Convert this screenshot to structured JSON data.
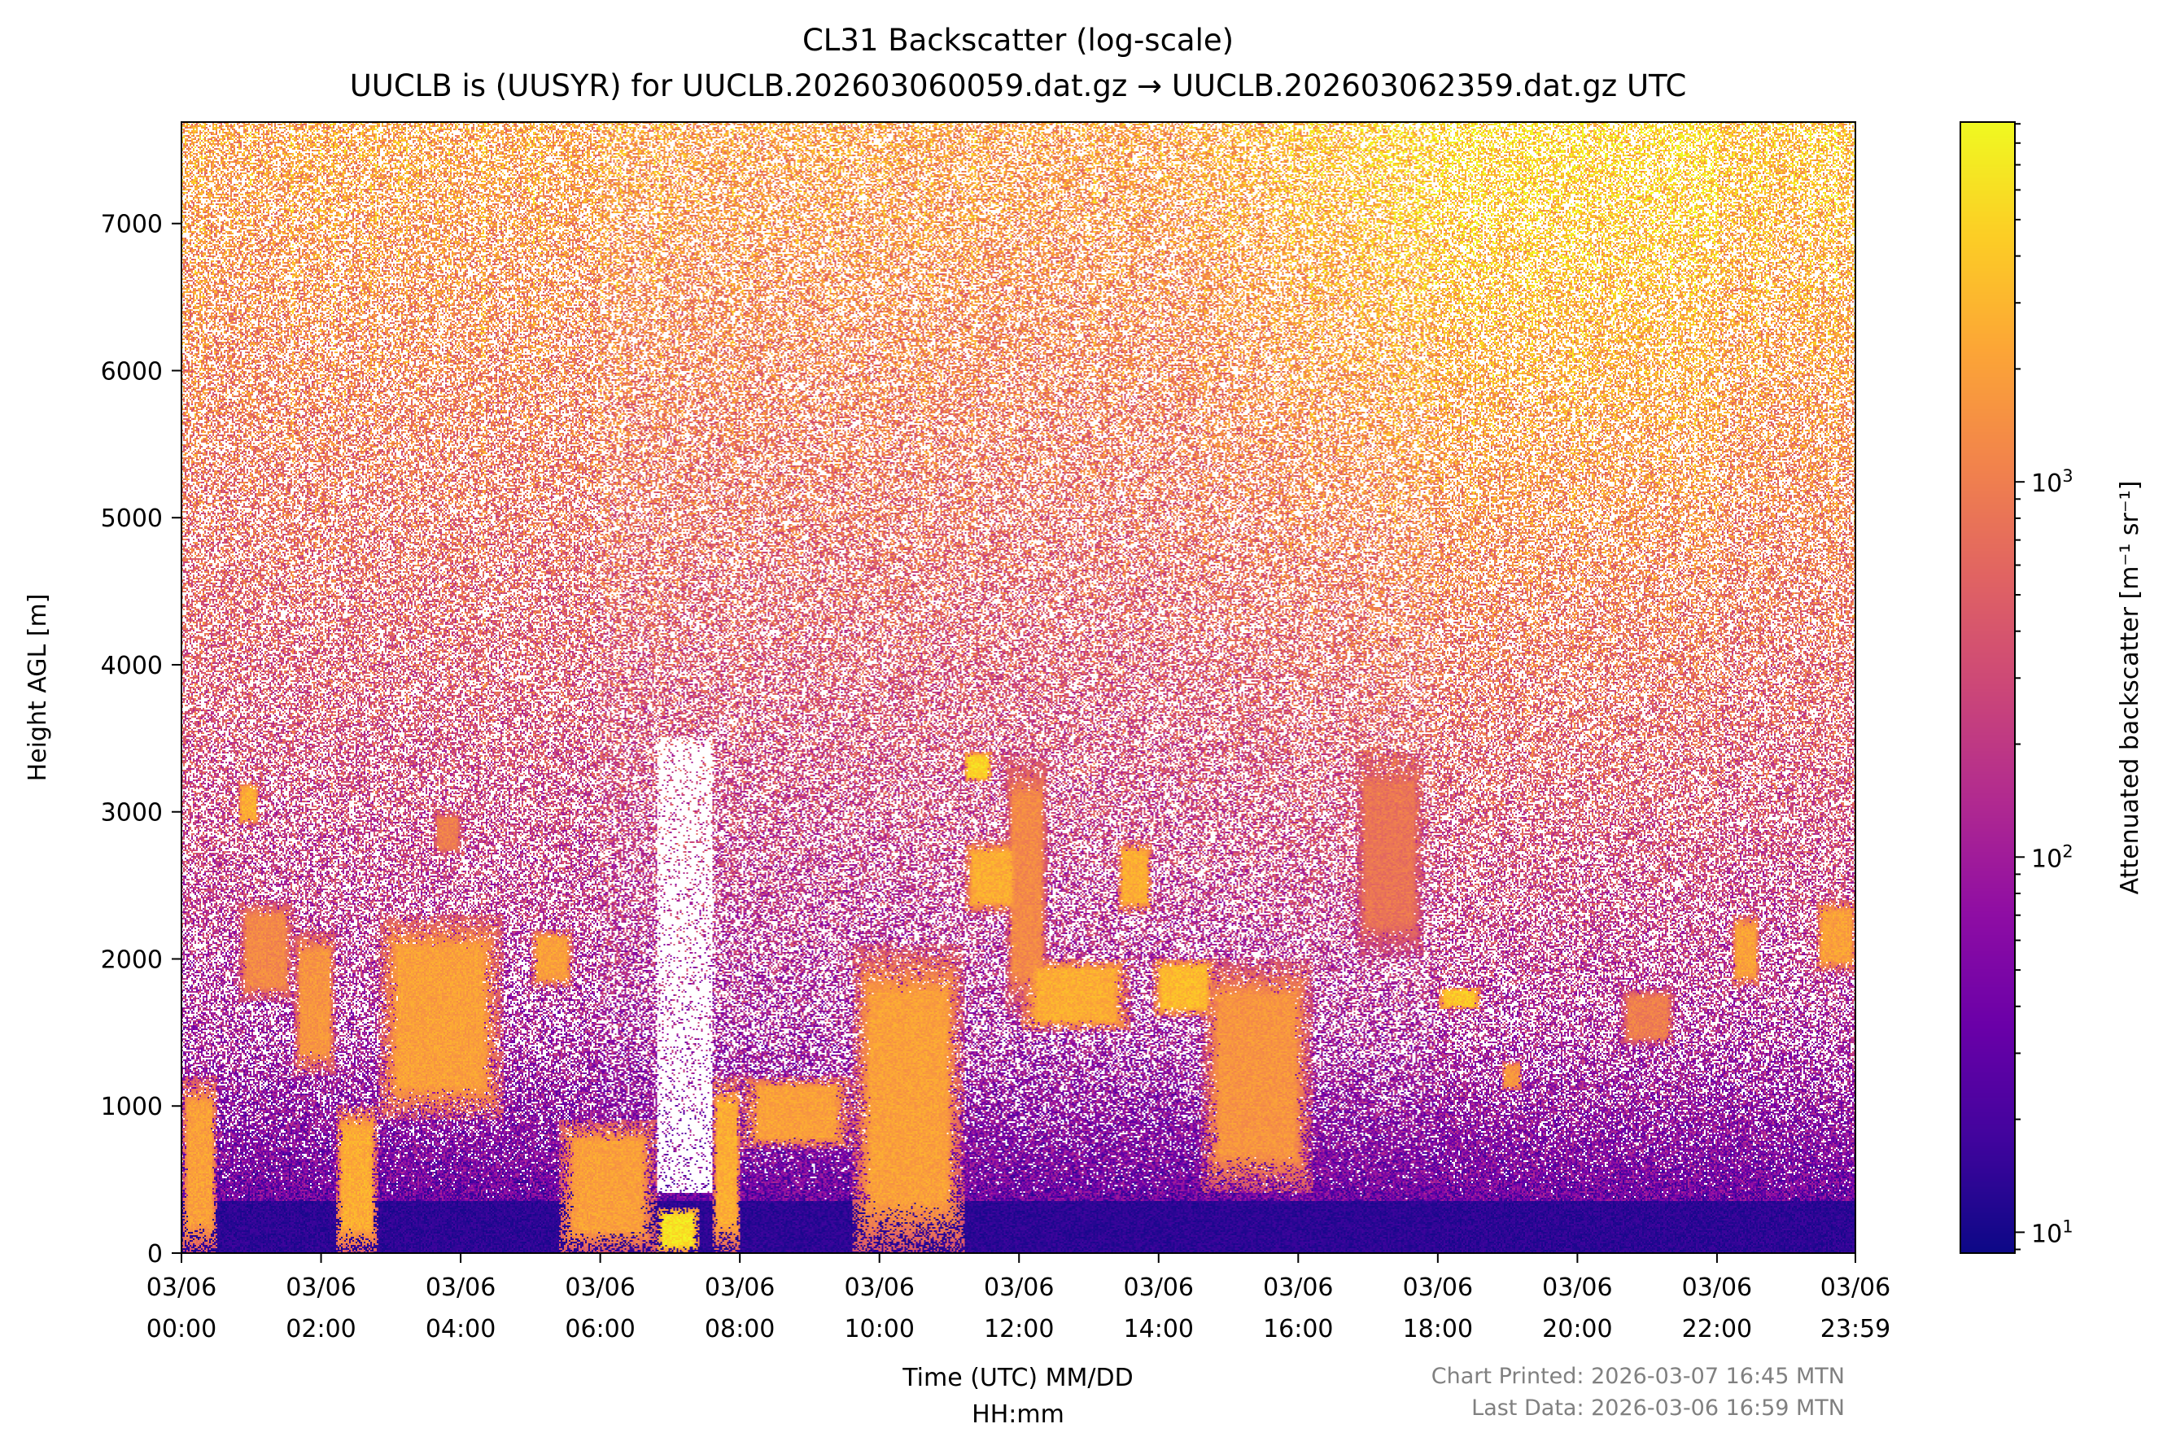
{
  "chart_data": {
    "type": "heatmap",
    "title": "CL31 Backscatter (log-scale)",
    "subtitle": "UUCLB is (UUSYR) for UUCLB.202603060059.dat.gz → UUCLB.202603062359.dat.gz UTC",
    "xlabel_line1": "Time (UTC) MM/DD",
    "xlabel_line2": "HH:mm",
    "ylabel": "Height AGL [m]",
    "colorbar_label": "Attenuated backscatter [m⁻¹ sr⁻¹]",
    "colormap": "plasma",
    "colorbar_scale": "log",
    "colorbar_range": [
      8.8,
      9100
    ],
    "xlim_hours": [
      0,
      23.983
    ],
    "ylim": [
      0,
      7690
    ],
    "x_ticks": [
      {
        "hour": 0,
        "date": "03/06",
        "time": "00:00"
      },
      {
        "hour": 2,
        "date": "03/06",
        "time": "02:00"
      },
      {
        "hour": 4,
        "date": "03/06",
        "time": "04:00"
      },
      {
        "hour": 6,
        "date": "03/06",
        "time": "06:00"
      },
      {
        "hour": 8,
        "date": "03/06",
        "time": "08:00"
      },
      {
        "hour": 10,
        "date": "03/06",
        "time": "10:00"
      },
      {
        "hour": 12,
        "date": "03/06",
        "time": "12:00"
      },
      {
        "hour": 14,
        "date": "03/06",
        "time": "14:00"
      },
      {
        "hour": 16,
        "date": "03/06",
        "time": "16:00"
      },
      {
        "hour": 18,
        "date": "03/06",
        "time": "18:00"
      },
      {
        "hour": 20,
        "date": "03/06",
        "time": "20:00"
      },
      {
        "hour": 22,
        "date": "03/06",
        "time": "22:00"
      },
      {
        "hour": 23.983,
        "date": "03/06",
        "time": "23:59"
      }
    ],
    "y_ticks": [
      {
        "value": 0,
        "label": "0"
      },
      {
        "value": 1000,
        "label": "1000"
      },
      {
        "value": 2000,
        "label": "2000"
      },
      {
        "value": 3000,
        "label": "3000"
      },
      {
        "value": 4000,
        "label": "4000"
      },
      {
        "value": 5000,
        "label": "5000"
      },
      {
        "value": 6000,
        "label": "6000"
      },
      {
        "value": 7000,
        "label": "7000"
      }
    ],
    "colorbar_ticks": [
      {
        "value": 10,
        "base": "10",
        "exp": "1"
      },
      {
        "value": 100,
        "base": "10",
        "exp": "2"
      },
      {
        "value": 1000,
        "base": "10",
        "exp": "3"
      }
    ],
    "cloud_features": [
      {
        "t0": 0.0,
        "t1": 0.5,
        "base": 0,
        "top": 1200,
        "log_value": 3.3
      },
      {
        "t0": 0.8,
        "t1": 1.1,
        "base": 2900,
        "top": 3200,
        "log_value": 3.4
      },
      {
        "t0": 0.8,
        "t1": 1.6,
        "base": 1700,
        "top": 2400,
        "log_value": 3.1
      },
      {
        "t0": 1.6,
        "t1": 2.2,
        "base": 1200,
        "top": 2200,
        "log_value": 3.2
      },
      {
        "t0": 2.2,
        "t1": 2.8,
        "base": 0,
        "top": 1000,
        "log_value": 3.4
      },
      {
        "t0": 2.8,
        "t1": 4.6,
        "base": 900,
        "top": 2300,
        "log_value": 3.3
      },
      {
        "t0": 3.6,
        "t1": 4.0,
        "base": 2700,
        "top": 3000,
        "log_value": 3.0
      },
      {
        "t0": 5.0,
        "t1": 5.6,
        "base": 1800,
        "top": 2200,
        "log_value": 3.3
      },
      {
        "t0": 5.4,
        "t1": 6.8,
        "base": 0,
        "top": 900,
        "log_value": 3.3
      },
      {
        "t0": 6.8,
        "t1": 7.4,
        "base": 0,
        "top": 300,
        "log_value": 3.8
      },
      {
        "t0": 7.6,
        "t1": 8.0,
        "base": 0,
        "top": 1200,
        "log_value": 3.4
      },
      {
        "t0": 8.0,
        "t1": 9.6,
        "base": 700,
        "top": 1200,
        "log_value": 3.3
      },
      {
        "t0": 9.6,
        "t1": 11.2,
        "base": 0,
        "top": 2100,
        "log_value": 3.3
      },
      {
        "t0": 11.2,
        "t1": 12.0,
        "base": 2300,
        "top": 2800,
        "log_value": 3.4
      },
      {
        "t0": 11.2,
        "t1": 11.6,
        "base": 3200,
        "top": 3400,
        "log_value": 3.7
      },
      {
        "t0": 11.8,
        "t1": 12.4,
        "base": 1600,
        "top": 3400,
        "log_value": 3.1
      },
      {
        "t0": 12.0,
        "t1": 13.6,
        "base": 1500,
        "top": 2000,
        "log_value": 3.4
      },
      {
        "t0": 13.4,
        "t1": 13.9,
        "base": 2300,
        "top": 2800,
        "log_value": 3.4
      },
      {
        "t0": 13.9,
        "t1": 14.8,
        "base": 1600,
        "top": 2000,
        "log_value": 3.5
      },
      {
        "t0": 14.6,
        "t1": 16.2,
        "base": 400,
        "top": 2000,
        "log_value": 3.2
      },
      {
        "t0": 16.8,
        "t1": 17.8,
        "base": 2000,
        "top": 3400,
        "log_value": 2.9
      },
      {
        "t0": 18.0,
        "t1": 18.6,
        "base": 1650,
        "top": 1800,
        "log_value": 3.6
      },
      {
        "t0": 18.9,
        "t1": 19.2,
        "base": 1100,
        "top": 1300,
        "log_value": 3.2
      },
      {
        "t0": 20.6,
        "t1": 21.4,
        "base": 1400,
        "top": 1800,
        "log_value": 3.0
      },
      {
        "t0": 22.2,
        "t1": 22.6,
        "base": 1800,
        "top": 2300,
        "log_value": 3.3
      },
      {
        "t0": 23.4,
        "t1": 24.0,
        "base": 1900,
        "top": 2400,
        "log_value": 3.3
      }
    ]
  },
  "footer": {
    "printed": "Chart Printed: 2026-03-07 16:45 MTN",
    "last_data": "Last Data: 2026-03-06 16:59 MTN"
  }
}
